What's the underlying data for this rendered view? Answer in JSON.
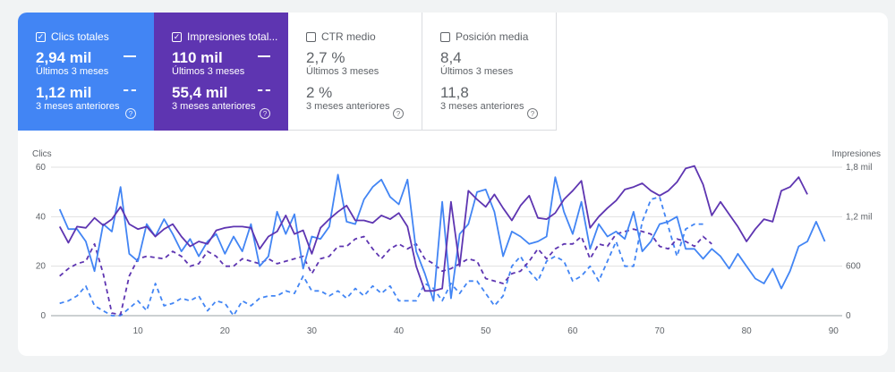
{
  "tiles": [
    {
      "title": "Clics totales",
      "checked": true,
      "value_current": "2,94 mil",
      "period_current": "Últimos 3 meses",
      "value_previous": "1,12 mil",
      "period_previous": "3 meses anteriores"
    },
    {
      "title": "Impresiones total...",
      "checked": true,
      "value_current": "110 mil",
      "period_current": "Últimos 3 meses",
      "value_previous": "55,4 mil",
      "period_previous": "3 meses anteriores"
    },
    {
      "title": "CTR medio",
      "checked": false,
      "value_current": "2,7 %",
      "period_current": "Últimos 3 meses",
      "value_previous": "2 %",
      "period_previous": "3 meses anteriores"
    },
    {
      "title": "Posición media",
      "checked": false,
      "value_current": "8,4",
      "period_current": "Últimos 3 meses",
      "value_previous": "11,8",
      "period_previous": "3 meses anteriores"
    }
  ],
  "help_glyph": "?",
  "check_glyph": "✓",
  "colors": {
    "clicks": "#4285f4",
    "impressions": "#5e35b1",
    "grid": "#e0e0e0",
    "axis": "#9aa0a6"
  },
  "chart_data": {
    "type": "line",
    "left_axis_label": "Clics",
    "right_axis_label": "Impresiones",
    "left_ticks": [
      "0",
      "20",
      "40",
      "60"
    ],
    "right_ticks": [
      "0",
      "600",
      "1,2 mil",
      "1,8 mil"
    ],
    "x_ticks": [
      "10",
      "20",
      "30",
      "40",
      "50",
      "60",
      "70",
      "80",
      "90"
    ],
    "xlim": [
      0,
      91
    ],
    "ylim_left": [
      0,
      60
    ],
    "ylim_right": [
      0,
      1800
    ],
    "series": [
      {
        "name": "Clics totales",
        "axis": "left",
        "style": "solid",
        "color": "#4285f4",
        "x_start": 1,
        "values": [
          43,
          35,
          35,
          30,
          18,
          37,
          34,
          52,
          25,
          22,
          37,
          32,
          39,
          33,
          26,
          31,
          24,
          30,
          33,
          25,
          32,
          26,
          37,
          20,
          24,
          42,
          33,
          41,
          19,
          32,
          31,
          36,
          57,
          38,
          37,
          47,
          52,
          55,
          48,
          45,
          55,
          26,
          17,
          6,
          46,
          7,
          33,
          37,
          50,
          51,
          42,
          24,
          34,
          32,
          29,
          30,
          32,
          56,
          42,
          33,
          46,
          27,
          37,
          32,
          34,
          31,
          42,
          26,
          30,
          37,
          38,
          40,
          27,
          27,
          23,
          27,
          24,
          19,
          25,
          20,
          15,
          13,
          19,
          11,
          18,
          28,
          30,
          38,
          30
        ]
      },
      {
        "name": "Impresiones totales",
        "axis": "right",
        "style": "solid",
        "color": "#5e35b1",
        "x_start": 1,
        "values": [
          1080,
          885,
          1080,
          1065,
          1185,
          1095,
          1170,
          1320,
          1110,
          1050,
          1080,
          960,
          1050,
          1110,
          960,
          840,
          900,
          870,
          1035,
          1065,
          1080,
          1080,
          1065,
          810,
          960,
          1020,
          1215,
          990,
          1035,
          750,
          1065,
          1170,
          1260,
          1335,
          1155,
          1155,
          1125,
          1215,
          1170,
          1245,
          1080,
          600,
          300,
          300,
          330,
          1380,
          600,
          1515,
          1410,
          1320,
          1470,
          1305,
          1155,
          1335,
          1455,
          1185,
          1170,
          1245,
          1410,
          1515,
          1635,
          1065,
          1200,
          1305,
          1395,
          1530,
          1560,
          1605,
          1515,
          1455,
          1515,
          1620,
          1785,
          1815,
          1590,
          1215,
          1380,
          1230,
          1080,
          900,
          1050,
          1170,
          1140,
          1515,
          1560,
          1680,
          1470
        ]
      },
      {
        "name": "Clics totales (3 meses anteriores)",
        "axis": "left",
        "style": "dashed",
        "color": "#4285f4",
        "x_start": 1,
        "values": [
          5,
          6,
          8,
          12,
          4,
          2,
          0,
          0,
          3,
          6,
          2,
          13,
          4,
          5,
          7,
          6,
          8,
          2,
          6,
          5,
          0,
          6,
          4,
          7,
          8,
          8,
          10,
          9,
          16,
          10,
          10,
          8,
          10,
          7,
          11,
          8,
          12,
          9,
          12,
          6,
          6,
          6,
          13,
          11,
          6,
          13,
          9,
          14,
          14,
          9,
          4,
          8,
          20,
          24,
          18,
          14,
          22,
          24,
          22,
          14,
          16,
          20,
          14,
          22,
          30,
          20,
          20,
          38,
          47,
          48,
          36,
          24,
          35,
          37,
          37
        ]
      },
      {
        "name": "Impresiones totales (3 meses anteriores)",
        "axis": "right",
        "style": "dashed",
        "color": "#5e35b1",
        "x_start": 1,
        "values": [
          480,
          570,
          630,
          660,
          870,
          510,
          30,
          15,
          480,
          690,
          720,
          705,
          690,
          780,
          720,
          600,
          630,
          780,
          720,
          600,
          600,
          690,
          660,
          630,
          690,
          630,
          660,
          690,
          720,
          510,
          690,
          720,
          840,
          840,
          930,
          960,
          810,
          690,
          810,
          870,
          810,
          870,
          690,
          630,
          540,
          570,
          630,
          690,
          660,
          450,
          420,
          390,
          510,
          540,
          660,
          810,
          690,
          810,
          870,
          870,
          960,
          690,
          870,
          840,
          990,
          1020,
          1050,
          1020,
          990,
          840,
          810,
          930,
          900,
          840,
          960,
          870
        ]
      }
    ]
  }
}
